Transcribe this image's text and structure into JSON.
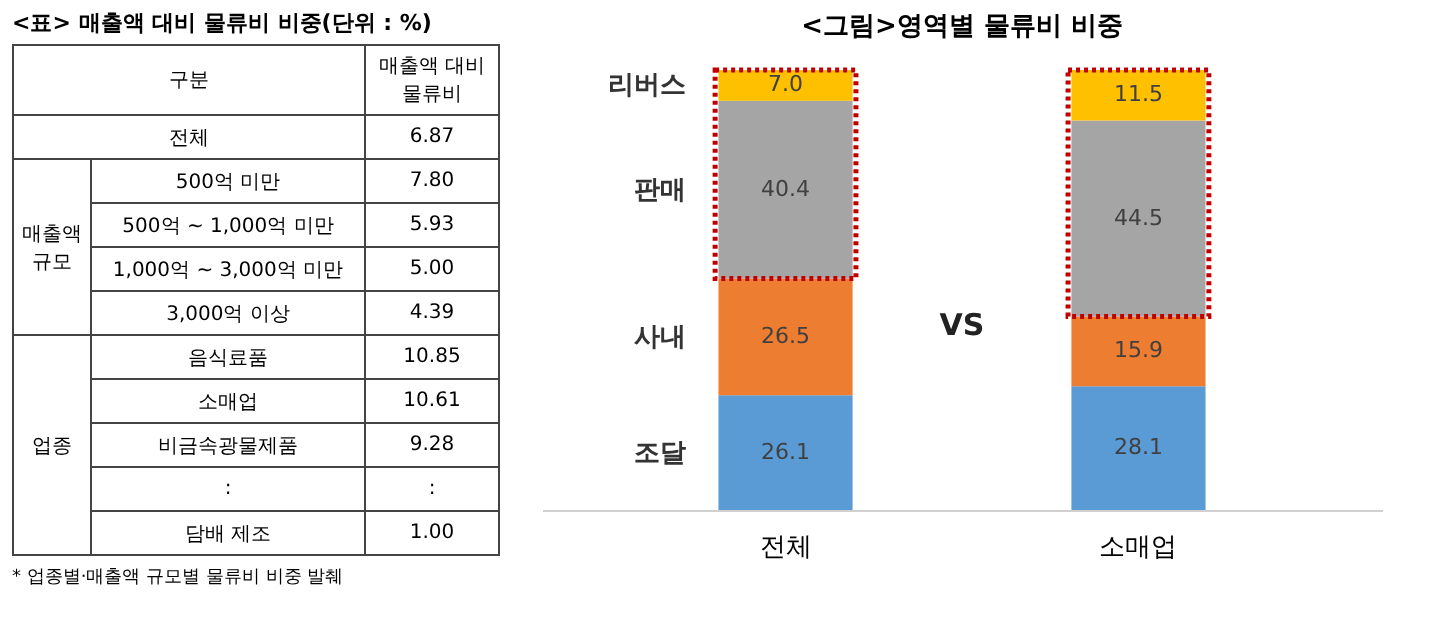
{
  "chart_data": [
    {
      "type": "other",
      "title": "<표> 매출액 대비 물류비 비중(단위 : %)",
      "xlabel": "구분",
      "ylabel": "매출액 대비 물류비",
      "categories": [
        "전체",
        "500억 미만",
        "500억 ~ 1,000억 미만",
        "1,000억 ~ 3,000억 미만",
        "3,000억 이상",
        "음식료품",
        "소매업",
        "비금속광물제품",
        null,
        "담배 제조"
      ],
      "value_labels": [
        "6.87",
        "7.80",
        "5.93",
        "5.00",
        "4.39",
        "10.85",
        "10.61",
        "9.28",
        ":",
        "1.00"
      ],
      "annotations": [
        {
          "text": "매출액 규모",
          "y": "500억 미만"
        },
        {
          "text": "업종",
          "y": "음식료품"
        },
        "* 업종별·매출액 규모별 물류비 비중 발췌"
      ]
    },
    {
      "type": "bar",
      "title": "<그림>영역별 물류비 비중",
      "categories": [
        "전체",
        "소매업"
      ],
      "stacked": true,
      "data_labels": true,
      "legend": "left",
      "series": [
        {
          "name": "조달",
          "color": "#5b9bd5",
          "values": [
            26.1,
            28.1
          ]
        },
        {
          "name": "사내",
          "color": "#ed7d31",
          "values": [
            26.5,
            15.9
          ]
        },
        {
          "name": "판매",
          "color": "#a5a5a5",
          "values": [
            40.4,
            44.5
          ]
        },
        {
          "name": "리버스",
          "color": "#ffc000",
          "values": [
            7.0,
            11.5
          ],
          "value_labels": [
            "7.0",
            "11.5"
          ]
        }
      ],
      "annotations": [
        "VS"
      ]
    }
  ]
}
